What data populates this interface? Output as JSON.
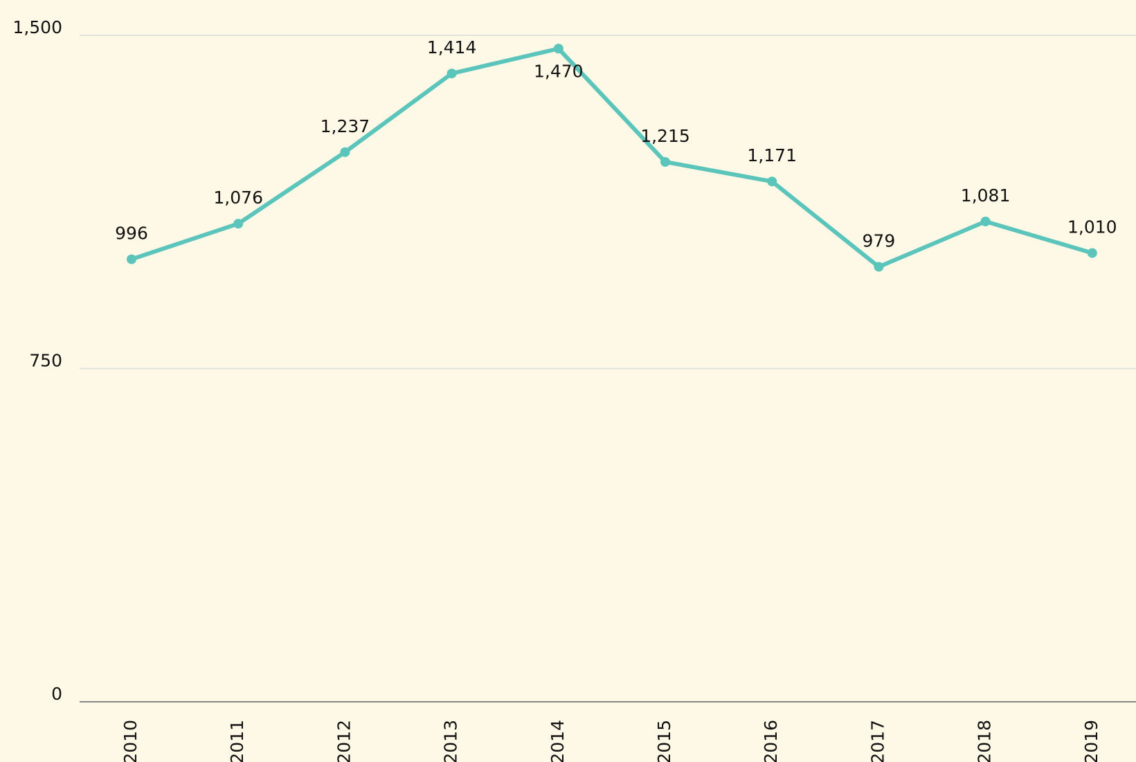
{
  "chart_data": {
    "type": "line",
    "categories": [
      "2010",
      "2011",
      "2012",
      "2013",
      "2014",
      "2015",
      "2016",
      "2017",
      "2018",
      "2019"
    ],
    "series": [
      {
        "color": "#5bc4bb",
        "values": [
          996,
          1076,
          1237,
          1414,
          1470,
          1215,
          1171,
          979,
          1081,
          1010
        ],
        "value_labels": [
          "996",
          "1,076",
          "1,237",
          "1,414",
          "1,470",
          "1,215",
          "1,171",
          "979",
          "1,081",
          "1,010"
        ]
      }
    ],
    "ylim": [
      0,
      1500
    ],
    "yticks": [
      0,
      750,
      {
        "value": 1500,
        "label": "1,500"
      }
    ],
    "grid": true
  }
}
